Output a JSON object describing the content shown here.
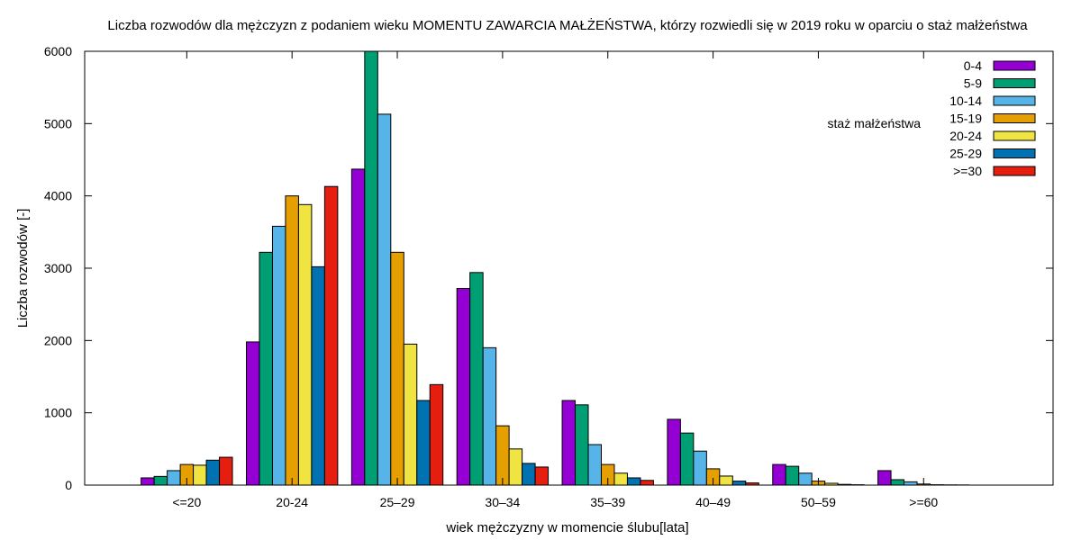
{
  "chart_data": {
    "type": "bar",
    "title": "Liczba rozwodów dla mężczyzn z podaniem wieku MOMENTU ZAWARCIA MAŁŻEŃSTWA, którzy rozwiedli się w 2019 roku w oparciu o staż małżeństwa",
    "xlabel": "wiek mężczyzny w momencie ślubu[lata]",
    "ylabel": "Liczba rozwodów [-]",
    "ylim": [
      0,
      6000
    ],
    "yticks": [
      0,
      1000,
      2000,
      3000,
      4000,
      5000,
      6000
    ],
    "grid": false,
    "legend_title": "staż małżeństwa",
    "legend_position": "top-right",
    "categories": [
      "<=20",
      "20-24",
      "25–29",
      "30–34",
      "35–39",
      "40–49",
      "50–59",
      ">=60"
    ],
    "series": [
      {
        "name": "0-4",
        "color": "#9400d3",
        "values": [
          100,
          1980,
          4370,
          2720,
          1170,
          910,
          285,
          200
        ]
      },
      {
        "name": "5-9",
        "color": "#009e73",
        "values": [
          120,
          3220,
          6000,
          2940,
          1110,
          720,
          260,
          75
        ]
      },
      {
        "name": "10-14",
        "color": "#56b4e9",
        "values": [
          200,
          3580,
          5130,
          1900,
          560,
          470,
          165,
          45
        ]
      },
      {
        "name": "15-19",
        "color": "#e69f00",
        "values": [
          285,
          4000,
          3220,
          820,
          285,
          225,
          55,
          15
        ]
      },
      {
        "name": "20-24",
        "color": "#f0e442",
        "values": [
          275,
          3880,
          1950,
          500,
          165,
          125,
          25,
          5
        ]
      },
      {
        "name": "25-29",
        "color": "#0072b2",
        "values": [
          345,
          3020,
          1170,
          300,
          100,
          55,
          10,
          3
        ]
      },
      {
        "name": ">=30",
        "color": "#e51e10",
        "values": [
          385,
          4130,
          1390,
          250,
          65,
          30,
          5,
          2
        ]
      }
    ]
  }
}
